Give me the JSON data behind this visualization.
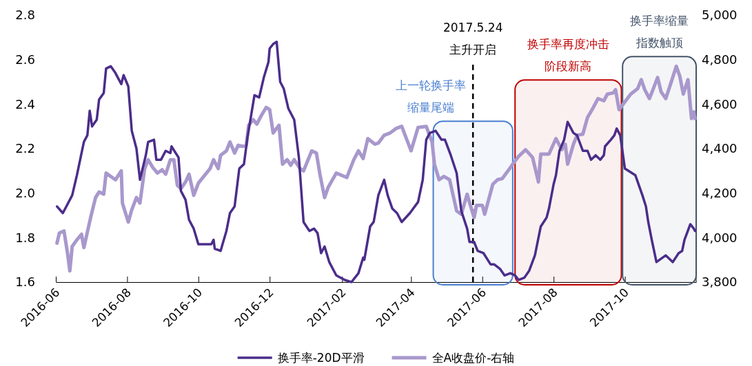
{
  "chart_data": {
    "type": "line",
    "xlim": [
      "2016-06-01",
      "2017-12-01"
    ],
    "xticks": [
      "2016-06",
      "2016-08",
      "2016-10",
      "2016-12",
      "2017-02",
      "2017-04",
      "2017-06",
      "2017-08",
      "2017-10"
    ],
    "ylim": [
      1.6,
      2.8
    ],
    "yticks": [
      1.6,
      1.8,
      {
        "value": 2,
        "label": "2.0"
      },
      2.2,
      2.4,
      2.6,
      2.8
    ],
    "y2lim": [
      3800,
      5000
    ],
    "y2ticks": [
      {
        "value": 3800,
        "label": "3,800"
      },
      {
        "value": 4000,
        "label": "4,000"
      },
      {
        "value": 4200,
        "label": "4,200"
      },
      {
        "value": 4400,
        "label": "4,400"
      },
      {
        "value": 4600,
        "label": "4,600"
      },
      {
        "value": 4800,
        "label": "4,800"
      },
      {
        "value": 5000,
        "label": "5,000"
      }
    ],
    "grid": false,
    "legend": "bottom",
    "marker": "none",
    "line_style": "solid",
    "series": [
      {
        "name": "换手率-20D平滑",
        "color": "#4b2d8a",
        "x": [
          "2016-06-02",
          "2016-06-07",
          "2016-06-15",
          "2016-06-19",
          "2016-06-25",
          "2016-06-28",
          "2016-06-30",
          "2016-07-02",
          "2016-07-06",
          "2016-07-08",
          "2016-07-12",
          "2016-07-14",
          "2016-07-18",
          "2016-07-22",
          "2016-07-27",
          "2016-07-29",
          "2016-08-02",
          "2016-08-05",
          "2016-08-09",
          "2016-08-12",
          "2016-08-17",
          "2016-08-19",
          "2016-08-24",
          "2016-08-26",
          "2016-08-30",
          "2016-09-03",
          "2016-09-07",
          "2016-09-08",
          "2016-09-14",
          "2016-09-16",
          "2016-09-20",
          "2016-09-23",
          "2016-09-27",
          "2016-10-01",
          "2016-10-12",
          "2016-10-14",
          "2016-10-15",
          "2016-10-20",
          "2016-10-25",
          "2016-10-28",
          "2016-11-01",
          "2016-11-05",
          "2016-11-09",
          "2016-11-12",
          "2016-11-18",
          "2016-11-22",
          "2016-11-26",
          "2016-11-30",
          "2016-12-01",
          "2016-12-04",
          "2016-12-07",
          "2016-12-10",
          "2016-12-13",
          "2016-12-17",
          "2016-12-22",
          "2016-12-26",
          "2016-12-30",
          "2017-01-04",
          "2017-01-08",
          "2017-01-11",
          "2017-01-14",
          "2017-01-17",
          "2017-01-21",
          "2017-01-27",
          "2017-02-03",
          "2017-02-09",
          "2017-02-15",
          "2017-02-19",
          "2017-02-20",
          "2017-02-25",
          "2017-02-28",
          "2017-03-04",
          "2017-03-09",
          "2017-03-12",
          "2017-03-16",
          "2017-03-20",
          "2017-03-24",
          "2017-03-31",
          "2017-04-07",
          "2017-04-11",
          "2017-04-14",
          "2017-04-17",
          "2017-04-22",
          "2017-04-27",
          "2017-04-30",
          "2017-05-05",
          "2017-05-10",
          "2017-05-14",
          "2017-05-19",
          "2017-05-21",
          "2017-05-25",
          "2017-05-28",
          "2017-06-02",
          "2017-06-08",
          "2017-06-11",
          "2017-06-16",
          "2017-06-20",
          "2017-06-25",
          "2017-06-29",
          "2017-07-02",
          "2017-07-07",
          "2017-07-11",
          "2017-07-16",
          "2017-07-21",
          "2017-07-26",
          "2017-07-28",
          "2017-08-01",
          "2017-08-03",
          "2017-08-06",
          "2017-08-10",
          "2017-08-13",
          "2017-08-18",
          "2017-08-21",
          "2017-08-26",
          "2017-08-30",
          "2017-09-02",
          "2017-09-06",
          "2017-09-10",
          "2017-09-13",
          "2017-09-14",
          "2017-09-19",
          "2017-09-22",
          "2017-09-24",
          "2017-09-27",
          "2017-10-01",
          "2017-10-10",
          "2017-10-16",
          "2017-10-19",
          "2017-10-21",
          "2017-10-24",
          "2017-10-28",
          "2017-11-05",
          "2017-11-11",
          "2017-11-16",
          "2017-11-19",
          "2017-11-21",
          "2017-11-26",
          "2017-11-29",
          "2017-11-30"
        ],
        "values": [
          1.94,
          1.91,
          1.99,
          2.08,
          2.23,
          2.26,
          2.37,
          2.3,
          2.33,
          2.42,
          2.45,
          2.56,
          2.57,
          2.54,
          2.49,
          2.53,
          2.48,
          2.28,
          2.2,
          2.06,
          2.17,
          2.23,
          2.24,
          2.15,
          2.15,
          2.19,
          2.18,
          2.21,
          2.16,
          2.01,
          1.97,
          1.88,
          1.84,
          1.77,
          1.77,
          1.79,
          1.75,
          1.74,
          1.83,
          1.91,
          1.94,
          2.11,
          2.13,
          2.25,
          2.44,
          2.43,
          2.52,
          2.59,
          2.65,
          2.67,
          2.68,
          2.5,
          2.47,
          2.38,
          2.33,
          2.16,
          1.87,
          1.83,
          1.84,
          1.82,
          1.73,
          1.76,
          1.69,
          1.63,
          1.61,
          1.6,
          1.64,
          1.71,
          1.7,
          1.85,
          1.87,
          1.99,
          2.06,
          1.99,
          1.93,
          1.91,
          1.87,
          1.91,
          1.96,
          2.06,
          2.24,
          2.27,
          2.28,
          2.24,
          2.24,
          2.17,
          2.09,
          1.92,
          1.84,
          1.78,
          1.78,
          1.74,
          1.73,
          1.68,
          1.68,
          1.66,
          1.63,
          1.64,
          1.63,
          1.61,
          1.62,
          1.65,
          1.72,
          1.85,
          1.89,
          1.93,
          2.04,
          2.08,
          2.19,
          2.24,
          2.32,
          2.27,
          2.26,
          2.19,
          2.19,
          2.15,
          2.17,
          2.15,
          2.17,
          2.21,
          2.24,
          2.26,
          2.29,
          2.26,
          2.11,
          2.08,
          1.99,
          1.94,
          1.87,
          1.79,
          1.69,
          1.72,
          1.69,
          1.73,
          1.74,
          1.79,
          1.86,
          1.84,
          1.83
        ]
      },
      {
        "name": "全A收盘价-右轴",
        "color": "#a898cc",
        "axis": "y2",
        "x": [
          "2016-06-02",
          "2016-06-04",
          "2016-06-08",
          "2016-06-11",
          "2016-06-13",
          "2016-06-15",
          "2016-06-19",
          "2016-06-23",
          "2016-06-25",
          "2016-06-28",
          "2016-07-01",
          "2016-07-05",
          "2016-07-08",
          "2016-07-12",
          "2016-07-14",
          "2016-07-18",
          "2016-07-22",
          "2016-07-27",
          "2016-07-28",
          "2016-08-02",
          "2016-08-05",
          "2016-08-09",
          "2016-08-12",
          "2016-08-16",
          "2016-08-19",
          "2016-08-23",
          "2016-08-27",
          "2016-08-31",
          "2016-09-03",
          "2016-09-07",
          "2016-09-10",
          "2016-09-13",
          "2016-09-16",
          "2016-09-20",
          "2016-09-23",
          "2016-09-27",
          "2016-10-01",
          "2016-10-11",
          "2016-10-14",
          "2016-10-18",
          "2016-10-20",
          "2016-10-25",
          "2016-10-28",
          "2016-11-01",
          "2016-11-04",
          "2016-11-08",
          "2016-11-11",
          "2016-11-13",
          "2016-11-17",
          "2016-11-20",
          "2016-11-24",
          "2016-11-28",
          "2016-12-01",
          "2016-12-04",
          "2016-12-09",
          "2016-12-12",
          "2016-12-16",
          "2016-12-19",
          "2016-12-22",
          "2016-12-27",
          "2016-12-30",
          "2017-01-06",
          "2017-01-10",
          "2017-01-13",
          "2017-01-17",
          "2017-01-20",
          "2017-01-27",
          "2017-02-05",
          "2017-02-11",
          "2017-02-15",
          "2017-02-19",
          "2017-02-23",
          "2017-03-01",
          "2017-03-04",
          "2017-03-09",
          "2017-03-14",
          "2017-03-19",
          "2017-03-24",
          "2017-04-01",
          "2017-04-07",
          "2017-04-14",
          "2017-04-19",
          "2017-04-21",
          "2017-04-25",
          "2017-04-29",
          "2017-05-04",
          "2017-05-10",
          "2017-05-14",
          "2017-05-19",
          "2017-05-22",
          "2017-05-25",
          "2017-05-27",
          "2017-06-01",
          "2017-06-03",
          "2017-06-10",
          "2017-06-14",
          "2017-06-18",
          "2017-06-23",
          "2017-06-27",
          "2017-07-02",
          "2017-07-08",
          "2017-07-14",
          "2017-07-19",
          "2017-07-21",
          "2017-07-28",
          "2017-08-03",
          "2017-08-08",
          "2017-08-11",
          "2017-08-13",
          "2017-08-18",
          "2017-08-21",
          "2017-08-26",
          "2017-08-30",
          "2017-09-04",
          "2017-09-08",
          "2017-09-13",
          "2017-09-16",
          "2017-09-21",
          "2017-09-23",
          "2017-09-26",
          "2017-10-01",
          "2017-10-06",
          "2017-10-12",
          "2017-10-15",
          "2017-10-18",
          "2017-10-22",
          "2017-10-25",
          "2017-10-29",
          "2017-11-01",
          "2017-11-05",
          "2017-11-10",
          "2017-11-14",
          "2017-11-17",
          "2017-11-20",
          "2017-11-24",
          "2017-11-27",
          "2017-11-29",
          "2017-11-30"
        ],
        "values": [
          3975,
          4020,
          4030,
          3930,
          3850,
          3960,
          3990,
          4015,
          3955,
          4025,
          4095,
          4180,
          4205,
          4195,
          4290,
          4275,
          4260,
          4300,
          4155,
          4070,
          4125,
          4180,
          4155,
          4310,
          4350,
          4315,
          4290,
          4305,
          4285,
          4350,
          4350,
          4235,
          4220,
          4250,
          4285,
          4190,
          4245,
          4310,
          4350,
          4310,
          4370,
          4390,
          4430,
          4380,
          4415,
          4410,
          4415,
          4505,
          4530,
          4510,
          4550,
          4585,
          4575,
          4470,
          4505,
          4330,
          4350,
          4325,
          4350,
          4310,
          4300,
          4390,
          4380,
          4285,
          4180,
          4225,
          4290,
          4270,
          4350,
          4390,
          4355,
          4445,
          4420,
          4425,
          4460,
          4470,
          4490,
          4500,
          4390,
          4495,
          4500,
          4430,
          4330,
          4260,
          4275,
          4260,
          4120,
          4105,
          4195,
          4140,
          4090,
          4145,
          4145,
          4105,
          4240,
          4260,
          4265,
          4300,
          4330,
          4365,
          4395,
          4360,
          4250,
          4375,
          4375,
          4445,
          4395,
          4420,
          4330,
          4420,
          4460,
          4465,
          4540,
          4585,
          4625,
          4615,
          4645,
          4650,
          4665,
          4575,
          4610,
          4645,
          4670,
          4710,
          4665,
          4625,
          4665,
          4720,
          4655,
          4625,
          4705,
          4770,
          4725,
          4645,
          4710,
          4535,
          4565,
          4535
        ]
      }
    ],
    "ref_lines": [
      {
        "axis": "x",
        "value": "2017-05-24",
        "label": "2017.5.24\n主升开启",
        "color": "#000000",
        "line_style": "dashed"
      }
    ],
    "bands": [
      {
        "axis": "x",
        "from": "2017-04-20",
        "to": "2017-06-27",
        "label": "上一轮换手率缩量尾端",
        "color": "#4a7fd0"
      },
      {
        "axis": "x",
        "from": "2017-06-29",
        "to": "2017-09-28",
        "label": "换手率再度冲击阶段新高",
        "color": "#c00000"
      },
      {
        "axis": "x",
        "from": "2017-09-29",
        "to": "2017-12-01",
        "label": "换手率缩量指数触顶",
        "color": "#44546a"
      }
    ]
  }
}
